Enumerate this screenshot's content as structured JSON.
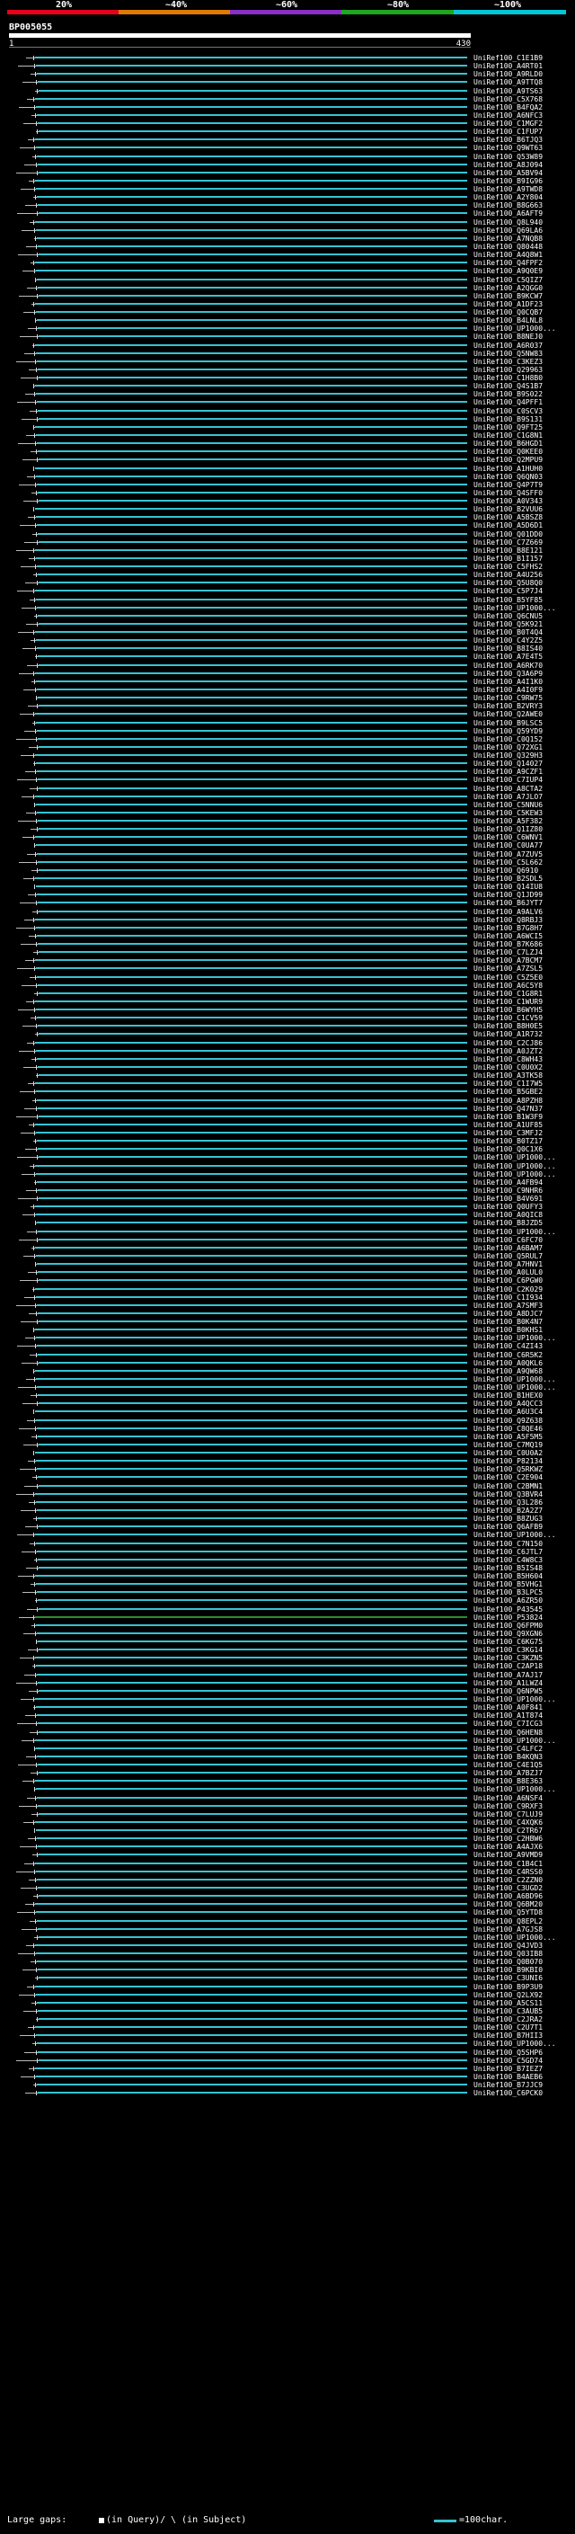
{
  "scale": {
    "labels": [
      "20%",
      "~40%",
      "~60%",
      "~80%",
      "~100%"
    ],
    "colors": [
      "#e8001c",
      "#e07a00",
      "#8a2ec8",
      "#1ea81e",
      "#00c8d8"
    ]
  },
  "query": {
    "id": "BP005055",
    "start": "1",
    "end": "430"
  },
  "hit_color": "#35c4d4",
  "highlight_color": "#2c8f2c",
  "highlight_index": 190,
  "hits": [
    "UniRef100_C1E1B9",
    "UniRef100_A4RT01",
    "UniRef100_A9RLD0",
    "UniRef100_A9TTQ8",
    "UniRef100_A9TS63",
    "UniRef100_C5X768",
    "UniRef100_B4FQA2",
    "UniRef100_A6NFC3",
    "UniRef100_C1MGF2",
    "UniRef100_C1FUP7",
    "UniRef100_B6TJQ3",
    "UniRef100_Q9WT63",
    "UniRef100_Q53W89",
    "UniRef100_A8J094",
    "UniRef100_A5BV94",
    "UniRef100_B9IG96",
    "UniRef100_A9TWD8",
    "UniRef100_A2Y804",
    "UniRef100_B8G663",
    "UniRef100_A6AFT9",
    "UniRef100_Q8L940",
    "UniRef100_Q69LA6",
    "UniRef100_A7NQB8",
    "UniRef100_Q80448",
    "UniRef100_A4Q8W1",
    "UniRef100_Q4FPF2",
    "UniRef100_A9Q0E9",
    "UniRef100_C5QIZ7",
    "UniRef100_A2QGG0",
    "UniRef100_B9KCW7",
    "UniRef100_A1DF23",
    "UniRef100_Q0CQB7",
    "UniRef100_B4LNL8",
    "UniRef100_UP1000...",
    "UniRef100_B8NEJ0",
    "UniRef100_A6R037",
    "UniRef100_Q5NW83",
    "UniRef100_C3KEZ3",
    "UniRef100_Q29963",
    "UniRef100_C1H8B0",
    "UniRef100_Q4S1B7",
    "UniRef100_B9S022",
    "UniRef100_Q4PFF1",
    "UniRef100_C0SCV3",
    "UniRef100_B9S131",
    "UniRef100_Q9FT25",
    "UniRef100_C1G8N1",
    "UniRef100_B6HGD1",
    "UniRef100_Q0KEE0",
    "UniRef100_Q2MPU9",
    "UniRef100_A1HUH0",
    "UniRef100_Q6QN03",
    "UniRef100_Q4P7T9",
    "UniRef100_Q4SFF0",
    "UniRef100_A0V343",
    "UniRef100_B2VUU6",
    "UniRef100_A5BSZ8",
    "UniRef100_A5D6D1",
    "UniRef100_Q01DD0",
    "UniRef100_C7Z669",
    "UniRef100_B8E121",
    "UniRef100_B1I157",
    "UniRef100_C5FHS2",
    "UniRef100_A4U256",
    "UniRef100_Q5U8Q0",
    "UniRef100_C5P7J4",
    "UniRef100_B5YF85",
    "UniRef100_UP1000...",
    "UniRef100_Q6CNU5",
    "UniRef100_Q5K921",
    "UniRef100_B0T4Q4",
    "UniRef100_C4Y2Z5",
    "UniRef100_B8IS40",
    "UniRef100_A7E4T5",
    "UniRef100_A6RK70",
    "UniRef100_Q3A6P9",
    "UniRef100_A4I1K0",
    "UniRef100_A4I0F9",
    "UniRef100_C9RW75",
    "UniRef100_B2VRY3",
    "UniRef100_Q2AWE0",
    "UniRef100_B9LSC5",
    "UniRef100_Q59YD9",
    "UniRef100_C0Q152",
    "UniRef100_Q72XG1",
    "UniRef100_Q329H3",
    "UniRef100_Q14027",
    "UniRef100_A9CZF1",
    "UniRef100_C7IUP4",
    "UniRef100_A8CTA2",
    "UniRef100_A7JLO7",
    "UniRef100_C5NNU6",
    "UniRef100_C5KEW3",
    "UniRef100_A5F382",
    "UniRef100_Q1IZ80",
    "UniRef100_C6WNV1",
    "UniRef100_C0UA77",
    "UniRef100_A7ZUV5",
    "UniRef100_C5L662",
    "UniRef100_Q6910",
    "UniRef100_B2SDL5",
    "UniRef100_Q14IU8",
    "UniRef100_Q1JD99",
    "UniRef100_B6JYT7",
    "UniRef100_A9ALV6",
    "UniRef100_Q8RBJ3",
    "UniRef100_B7G8H7",
    "UniRef100_A6WCI5",
    "UniRef100_B7K686",
    "UniRef100_C7LZJ4",
    "UniRef100_A7BCM7",
    "UniRef100_A7ZSL5",
    "UniRef100_C5Z5E0",
    "UniRef100_A6C5Y8",
    "UniRef100_C1G8R1",
    "UniRef100_C1WUR9",
    "UniRef100_B6WYH5",
    "UniRef100_C1CV59",
    "UniRef100_B8H0E5",
    "UniRef100_A1R732",
    "UniRef100_C2CJ86",
    "UniRef100_A0JZT2",
    "UniRef100_C8WH43",
    "UniRef100_C0U0X2",
    "UniRef100_A3TK58",
    "UniRef100_C1I7W5",
    "UniRef100_B5GBE2",
    "UniRef100_A8PZH8",
    "UniRef100_Q47N37",
    "UniRef100_B1W3F9",
    "UniRef100_A1UF85",
    "UniRef100_C3MFJ2",
    "UniRef100_B0TZ17",
    "UniRef100_Q0C1X6",
    "UniRef100_UP1000...",
    "UniRef100_UP1000...",
    "UniRef100_UP1000...",
    "UniRef100_A4FB94",
    "UniRef100_C9NHR6",
    "UniRef100_B4V691",
    "UniRef100_Q0UFY3",
    "UniRef100_A0QIC8",
    "UniRef100_B8JZD5",
    "UniRef100_UP1000...",
    "UniRef100_C6FC70",
    "UniRef100_A6BAM7",
    "UniRef100_Q5RUL7",
    "UniRef100_A7HNV1",
    "UniRef100_A0LUL0",
    "UniRef100_C6PGW0",
    "UniRef100_C2K029",
    "UniRef100_C1I934",
    "UniRef100_A7SMF3",
    "UniRef100_A8DJC7",
    "UniRef100_B0K4N7",
    "UniRef100_B0KHS1",
    "UniRef100_UP1000...",
    "UniRef100_C4ZI43",
    "UniRef100_C6R5K2",
    "UniRef100_A0QKL6",
    "UniRef100_A9QW68",
    "UniRef100_UP1000...",
    "UniRef100_UP1000...",
    "UniRef100_B1HEX0",
    "UniRef100_A4QCC3",
    "UniRef100_A6U3C4",
    "UniRef100_Q9Z638",
    "UniRef100_C8QE46",
    "UniRef100_A5F5M5",
    "UniRef100_C7MQ19",
    "UniRef100_C0U0A2",
    "UniRef100_P82134",
    "UniRef100_Q5RKWZ",
    "UniRef100_C2E904",
    "UniRef100_C2BMN1",
    "UniRef100_Q3BVR4",
    "UniRef100_Q3L286",
    "UniRef100_B2A2Z7",
    "UniRef100_B8ZUG3",
    "UniRef100_Q6AFB9",
    "UniRef100_UP1000...",
    "UniRef100_C7N150",
    "UniRef100_C6JTL7",
    "UniRef100_C4W8C3",
    "UniRef100_B5IS48",
    "UniRef100_B5H604",
    "UniRef100_B5VHG1",
    "UniRef100_B3LPC5",
    "UniRef100_A6ZR50",
    "UniRef100_P43545",
    "UniRef100_P53824",
    "UniRef100_Q6FPM0",
    "UniRef100_Q9XGN6",
    "UniRef100_C6KG75",
    "UniRef100_C3KG14",
    "UniRef100_C3KZN5",
    "UniRef100_C2AP18",
    "UniRef100_A7AJ17",
    "UniRef100_A1LWZ4",
    "UniRef100_Q6NPW5",
    "UniRef100_UP1000...",
    "UniRef100_A0F841",
    "UniRef100_A1T874",
    "UniRef100_C7ICG3",
    "UniRef100_Q6HEN8",
    "UniRef100_UP1000...",
    "UniRef100_C4LFC2",
    "UniRef100_B4KQN3",
    "UniRef100_C4E1Q5",
    "UniRef100_A7BZJ7",
    "UniRef100_B8E363",
    "UniRef100_UP1000...",
    "UniRef100_A6NSF4",
    "UniRef100_C9RXF3",
    "UniRef100_C7LUJ9",
    "UniRef100_C4XQK6",
    "UniRef100_C2TR67",
    "UniRef100_C2HBW6",
    "UniRef100_A4AJX6",
    "UniRef100_A9VMD9",
    "UniRef100_C1B4C1",
    "UniRef100_C4RSS0",
    "UniRef100_C2ZZN0",
    "UniRef100_C3UGD2",
    "UniRef100_A6BD96",
    "UniRef100_Q6BM20",
    "UniRef100_Q5YTD8",
    "UniRef100_Q8EPL2",
    "UniRef100_A7GJS8",
    "UniRef100_UP1000...",
    "UniRef100_Q4JVD3",
    "UniRef100_Q03IB8",
    "UniRef100_Q0B070",
    "UniRef100_B9KBI0",
    "UniRef100_C3UNI6",
    "UniRef100_B9P3U9",
    "UniRef100_Q2LX92",
    "UniRef100_A5CS11",
    "UniRef100_C3AUB5",
    "UniRef100_C2JRA2",
    "UniRef100_C2U7T1",
    "UniRef100_B7HII3",
    "UniRef100_UP1000...",
    "UniRef100_Q5SHP6",
    "UniRef100_C5GD74",
    "UniRef100_B7IEZ7",
    "UniRef100_B4AEB6",
    "UniRef100_B7JJC9",
    "UniRef100_C6PCK0"
  ],
  "legend": {
    "gaps_text": "Large gaps:",
    "query_text": "(in Query)/",
    "subject_text": "\\ (in Subject)",
    "unit_text": "=100char."
  }
}
